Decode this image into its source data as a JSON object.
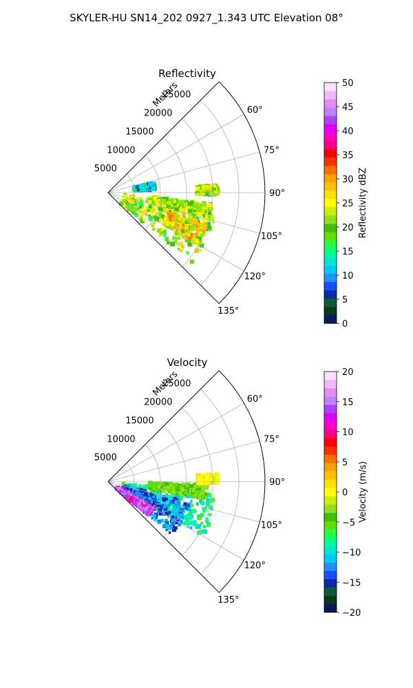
{
  "title": "SKYLER-HU  SN14_202  0927_1.343 UTC Elevation 08°",
  "chart_data": [
    {
      "type": "heatmap",
      "projection": "polar-sector",
      "title": "Reflectivity",
      "range_axis_label": "Meters",
      "range_ticks": [
        5000,
        10000,
        15000,
        20000,
        25000
      ],
      "range_tick_labels": [
        "5000",
        "10000",
        "15000",
        "20000",
        "25000"
      ],
      "range_max": 30000,
      "azimuth_range": [
        45,
        135
      ],
      "azimuth_ticks": [
        60,
        75,
        90,
        105,
        120,
        135
      ],
      "azimuth_tick_labels": [
        "60°",
        "75°",
        "90°",
        "105°",
        "120°",
        "135°"
      ],
      "grid": true,
      "colorbar": {
        "label": "Reflectivity dBZ",
        "range": [
          0,
          50
        ],
        "ticks": [
          0,
          5,
          10,
          15,
          20,
          25,
          30,
          35,
          40,
          45,
          50
        ],
        "tick_labels": [
          "0",
          "5",
          "10",
          "15",
          "20",
          "25",
          "30",
          "35",
          "40",
          "45",
          "50"
        ],
        "colors": [
          "#0a1a5c",
          "#0a3a1e",
          "#0b5a3a",
          "#0a2aa8",
          "#1450ff",
          "#1e90ff",
          "#00c8ff",
          "#00e8d0",
          "#00ff90",
          "#20ff40",
          "#60e000",
          "#40c000",
          "#90e020",
          "#c8f000",
          "#ffff00",
          "#ffe000",
          "#ffc000",
          "#ffa000",
          "#ff7000",
          "#ff3000",
          "#ff0000",
          "#ff0080",
          "#ff00c8",
          "#e000ff",
          "#b040ff",
          "#c080ff",
          "#e090f0",
          "#f0b8f8",
          "#fde0fd"
        ]
      },
      "echo_regions": [
        {
          "az": [
            97,
            130
          ],
          "range": [
            3000,
            21000
          ],
          "value_range": [
            15,
            28
          ]
        },
        {
          "az": [
            96,
            104
          ],
          "range": [
            8000,
            20000
          ],
          "value_range": [
            18,
            26
          ]
        },
        {
          "az": [
            108,
            120
          ],
          "range": [
            12000,
            20000
          ],
          "value_range": [
            20,
            32
          ]
        },
        {
          "az": [
            78,
            86
          ],
          "range": [
            5000,
            9000
          ],
          "value_range": [
            5,
            18
          ]
        },
        {
          "az": [
            86,
            91
          ],
          "range": [
            17000,
            21000
          ],
          "value_range": [
            18,
            27
          ]
        }
      ]
    },
    {
      "type": "heatmap",
      "projection": "polar-sector",
      "title": "Velocity",
      "range_axis_label": "Meters",
      "range_ticks": [
        5000,
        10000,
        15000,
        20000,
        25000
      ],
      "range_tick_labels": [
        "5000",
        "10000",
        "15000",
        "20000",
        "25000"
      ],
      "range_max": 30000,
      "azimuth_range": [
        45,
        135
      ],
      "azimuth_ticks": [
        60,
        75,
        90,
        105,
        120,
        135
      ],
      "azimuth_tick_labels": [
        "60°",
        "75°",
        "90°",
        "105°",
        "120°",
        "135°"
      ],
      "grid": true,
      "colorbar": {
        "label": "Velocity (m/s)",
        "range": [
          -20,
          20
        ],
        "ticks": [
          -20,
          -15,
          -10,
          -5,
          0,
          5,
          10,
          15,
          20
        ],
        "tick_labels": [
          "−20",
          "−15",
          "−10",
          "−5",
          "0",
          "5",
          "10",
          "15",
          "20"
        ],
        "colors": [
          "#0a1a5c",
          "#0a3a1e",
          "#0b5a3a",
          "#0a2aa8",
          "#1450ff",
          "#1e90ff",
          "#00c8ff",
          "#00e8d0",
          "#00ff90",
          "#20ff40",
          "#60e000",
          "#40c000",
          "#90e020",
          "#c8f000",
          "#ffff00",
          "#ffe000",
          "#ffc000",
          "#ffa000",
          "#ff7000",
          "#ff3000",
          "#ff0000",
          "#ff0080",
          "#ff00c8",
          "#e000ff",
          "#b040ff",
          "#c080ff",
          "#e090f0",
          "#f0b8f8",
          "#fde0fd"
        ]
      },
      "echo_regions": [
        {
          "az": [
            97,
            120
          ],
          "range": [
            3000,
            21000
          ],
          "value_range": [
            -12,
            -6
          ]
        },
        {
          "az": [
            104,
            130
          ],
          "range": [
            3000,
            16000
          ],
          "value_range": [
            -16,
            -10
          ]
        },
        {
          "az": [
            120,
            130
          ],
          "range": [
            2000,
            10000
          ],
          "value_range": [
            10,
            16
          ]
        },
        {
          "az": [
            92,
            100
          ],
          "range": [
            8000,
            19000
          ],
          "value_range": [
            -6,
            -2
          ]
        },
        {
          "az": [
            86,
            91
          ],
          "range": [
            17000,
            21000
          ],
          "value_range": [
            -1,
            2
          ]
        }
      ]
    }
  ]
}
